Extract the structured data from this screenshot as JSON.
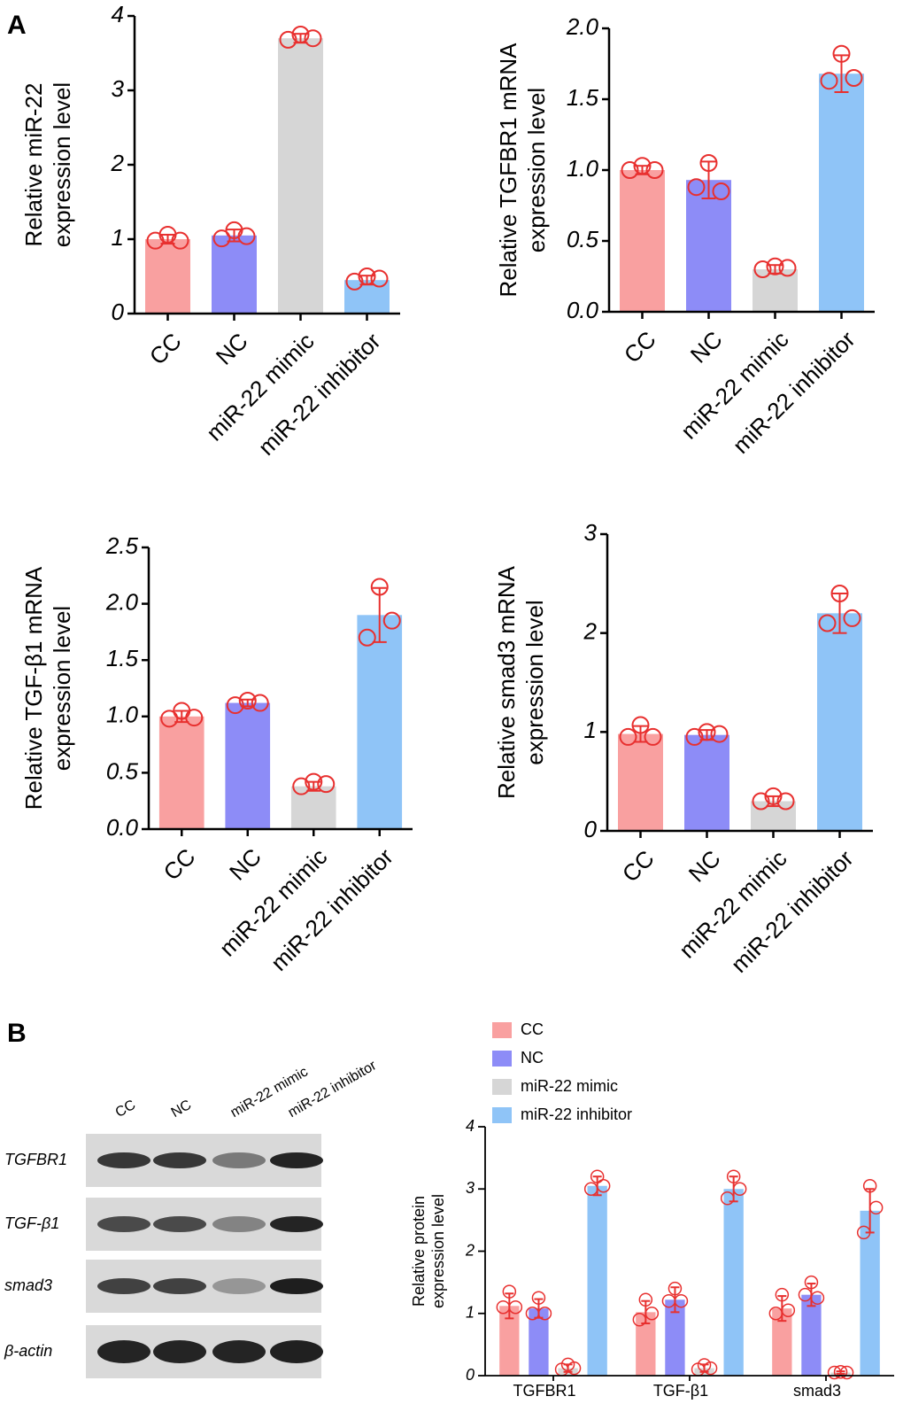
{
  "panels": [
    "A",
    "B"
  ],
  "blot": {
    "lanes": [
      "CC",
      "NC",
      "miR-22 mimic",
      "miR-22 inhibitor"
    ],
    "rows": [
      "TGFBR1",
      "TGF-β1",
      "smad3",
      "β-actin"
    ]
  },
  "chart_data": [
    {
      "type": "bar",
      "ylabel": [
        "Relative miR-22",
        "expression level"
      ],
      "categories": [
        "CC",
        "NC",
        "miR-22 mimic",
        "miR-22 inhibitor"
      ],
      "values": [
        1.0,
        1.05,
        3.7,
        0.45
      ],
      "errors": [
        0.06,
        0.08,
        0.06,
        0.06
      ],
      "points": [
        [
          0.98,
          1.06,
          0.98
        ],
        [
          1.01,
          1.12,
          1.04
        ],
        [
          3.68,
          3.75,
          3.7
        ],
        [
          0.43,
          0.5,
          0.47
        ]
      ],
      "colors": [
        "#f9a0a0",
        "#8d8cf7",
        "#d6d6d6",
        "#8fc4f7"
      ],
      "marker_color": "#e8302f",
      "ylim": [
        0,
        4
      ],
      "yticks": [
        0,
        1,
        2,
        3,
        4
      ]
    },
    {
      "type": "bar",
      "ylabel": [
        "Relative TGFBR1 mRNA",
        "expression level"
      ],
      "categories": [
        "CC",
        "NC",
        "miR-22 mimic",
        "miR-22 inhibitor"
      ],
      "values": [
        1.0,
        0.93,
        0.3,
        1.68
      ],
      "errors": [
        0.03,
        0.13,
        0.03,
        0.13
      ],
      "points": [
        [
          1.0,
          1.03,
          1.0
        ],
        [
          0.88,
          1.05,
          0.85
        ],
        [
          0.3,
          0.32,
          0.31
        ],
        [
          1.63,
          1.82,
          1.65
        ]
      ],
      "colors": [
        "#f9a0a0",
        "#8d8cf7",
        "#d6d6d6",
        "#8fc4f7"
      ],
      "marker_color": "#e8302f",
      "ylim": [
        0,
        2
      ],
      "yticks": [
        {
          "value": 0,
          "label": "0.0"
        },
        0.5,
        {
          "value": 1,
          "label": "1.0"
        },
        1.5,
        {
          "value": 2,
          "label": "2.0"
        }
      ]
    },
    {
      "type": "bar",
      "ylabel": [
        "Relative TGF-β1 mRNA",
        "expression level"
      ],
      "categories": [
        "CC",
        "NC",
        "miR-22 mimic",
        "miR-22 inhibitor"
      ],
      "values": [
        1.0,
        1.12,
        0.38,
        1.9
      ],
      "errors": [
        0.05,
        0.03,
        0.04,
        0.24
      ],
      "points": [
        [
          0.98,
          1.05,
          0.99
        ],
        [
          1.1,
          1.14,
          1.12
        ],
        [
          0.38,
          0.42,
          0.4
        ],
        [
          1.7,
          2.15,
          1.85
        ]
      ],
      "colors": [
        "#f9a0a0",
        "#8d8cf7",
        "#d6d6d6",
        "#8fc4f7"
      ],
      "marker_color": "#e8302f",
      "ylim": [
        0,
        2.5
      ],
      "yticks": [
        {
          "value": 0,
          "label": "0.0"
        },
        0.5,
        {
          "value": 1,
          "label": "1.0"
        },
        1.5,
        {
          "value": 2,
          "label": "2.0"
        },
        2.5
      ]
    },
    {
      "type": "bar",
      "ylabel": [
        "Relative smad3 mRNA",
        "expression level"
      ],
      "categories": [
        "CC",
        "NC",
        "miR-22 mimic",
        "miR-22 inhibitor"
      ],
      "values": [
        0.98,
        0.97,
        0.3,
        2.2
      ],
      "errors": [
        0.08,
        0.05,
        0.05,
        0.2
      ],
      "points": [
        [
          0.95,
          1.07,
          0.95
        ],
        [
          0.95,
          1.0,
          0.98
        ],
        [
          0.3,
          0.35,
          0.3
        ],
        [
          2.1,
          2.4,
          2.15
        ]
      ],
      "colors": [
        "#f9a0a0",
        "#8d8cf7",
        "#d6d6d6",
        "#8fc4f7"
      ],
      "marker_color": "#e8302f",
      "ylim": [
        0,
        3
      ],
      "yticks": [
        0,
        1,
        2,
        3
      ]
    },
    {
      "type": "grouped_bar",
      "ylabel": [
        "Relative protein",
        "expression level"
      ],
      "categories": [
        "TGFBR1",
        "TGF-β1",
        "smad3"
      ],
      "series": [
        {
          "name": "CC",
          "color": "#f9a0a0",
          "values": [
            1.12,
            1.02,
            1.08
          ],
          "errors": [
            0.2,
            0.18,
            0.2
          ],
          "points": [
            [
              1.1,
              1.35,
              1.1
            ],
            [
              0.9,
              1.22,
              1.0
            ],
            [
              1.0,
              1.3,
              1.05
            ]
          ]
        },
        {
          "name": "NC",
          "color": "#8d8cf7",
          "values": [
            1.08,
            1.22,
            1.3
          ],
          "errors": [
            0.15,
            0.2,
            0.18
          ],
          "points": [
            [
              1.0,
              1.25,
              1.0
            ],
            [
              1.2,
              1.4,
              1.2
            ],
            [
              1.3,
              1.5,
              1.25
            ]
          ]
        },
        {
          "name": "miR-22 mimic",
          "color": "#d6d6d6",
          "values": [
            0.12,
            0.12,
            0.05
          ],
          "errors": [
            0.06,
            0.06,
            0.02
          ],
          "points": [
            [
              0.1,
              0.18,
              0.12
            ],
            [
              0.1,
              0.17,
              0.12
            ],
            [
              0.05,
              0.06,
              0.05
            ]
          ]
        },
        {
          "name": "miR-22 inhibitor",
          "color": "#8fc4f7",
          "values": [
            3.05,
            3.0,
            2.65
          ],
          "errors": [
            0.15,
            0.2,
            0.35
          ],
          "points": [
            [
              3.0,
              3.2,
              3.05
            ],
            [
              2.85,
              3.2,
              3.0
            ],
            [
              2.3,
              3.05,
              2.7
            ]
          ]
        }
      ],
      "marker_color": "#e8302f",
      "legend": "top-left",
      "ylim": [
        0,
        4
      ],
      "yticks": [
        0,
        1,
        2,
        3,
        4
      ]
    }
  ]
}
